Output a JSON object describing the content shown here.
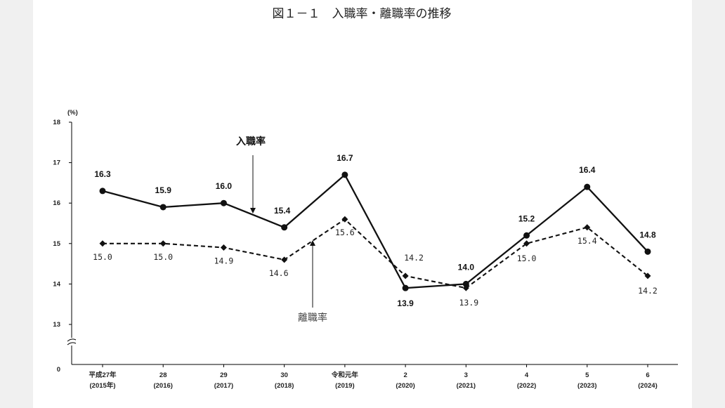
{
  "chart_data": {
    "type": "line",
    "title": "図１－１　入職率・離職率の推移",
    "ylabel": "(%)",
    "ylim": [
      13,
      18
    ],
    "yticks": [
      "18",
      "17",
      "16",
      "15",
      "14",
      "13"
    ],
    "ybreak_zero": "0",
    "categories": [
      {
        "line1": "平成27年",
        "line2": "(2015年)"
      },
      {
        "line1": "28",
        "line2": "(2016)"
      },
      {
        "line1": "29",
        "line2": "(2017)"
      },
      {
        "line1": "30",
        "line2": "(2018)"
      },
      {
        "line1": "令和元年",
        "line2": "(2019)"
      },
      {
        "line1": "2",
        "line2": "(2020)"
      },
      {
        "line1": "3",
        "line2": "(2021)"
      },
      {
        "line1": "4",
        "line2": "(2022)"
      },
      {
        "line1": "5",
        "line2": "(2023)"
      },
      {
        "line1": "6",
        "line2": "(2024)"
      }
    ],
    "series": [
      {
        "name": "入職率",
        "values": [
          16.3,
          15.9,
          16.0,
          15.4,
          16.7,
          13.9,
          14.0,
          15.2,
          16.4,
          14.8
        ],
        "labels": [
          "16.3",
          "15.9",
          "16.0",
          "15.4",
          "16.7",
          "13.9",
          "14.0",
          "15.2",
          "16.4",
          "14.8"
        ],
        "style": "solid",
        "marker": "circle",
        "color": "#111111"
      },
      {
        "name": "離職率",
        "values": [
          15.0,
          15.0,
          14.9,
          14.6,
          15.6,
          14.2,
          13.9,
          15.0,
          15.4,
          14.2
        ],
        "labels": [
          "15.0",
          "15.0",
          "14.9",
          "14.6",
          "15.6",
          "14.2",
          "13.9",
          "15.0",
          "15.4",
          "14.2"
        ],
        "style": "dashed",
        "marker": "diamond",
        "color": "#111111"
      }
    ],
    "legend": "annotations with arrows"
  }
}
